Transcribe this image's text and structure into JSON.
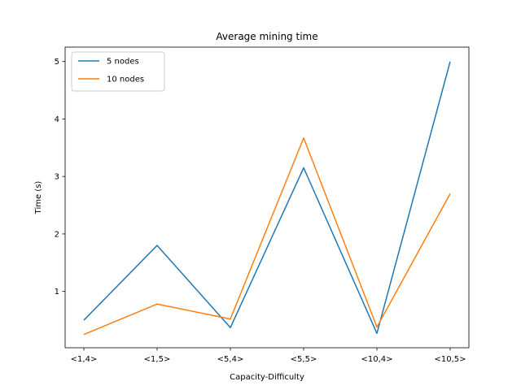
{
  "chart_data": {
    "type": "line",
    "title": "Average mining time",
    "xlabel": "Capacity-Difficulty",
    "ylabel": "Time (s)",
    "categories": [
      "<1,4>",
      "<1,5>",
      "<5,4>",
      "<5,5>",
      "<10,4>",
      "<10,5>"
    ],
    "series": [
      {
        "name": "5 nodes",
        "color": "#1f77b4",
        "values": [
          0.5,
          1.8,
          0.37,
          3.15,
          0.27,
          5.0
        ]
      },
      {
        "name": "10 nodes",
        "color": "#ff7f0e",
        "values": [
          0.25,
          0.78,
          0.52,
          3.67,
          0.38,
          2.7
        ]
      }
    ],
    "ylim": [
      0.02,
      5.25
    ],
    "yticks": [
      1,
      2,
      3,
      4,
      5
    ],
    "grid": false,
    "legend": "upper-left"
  }
}
